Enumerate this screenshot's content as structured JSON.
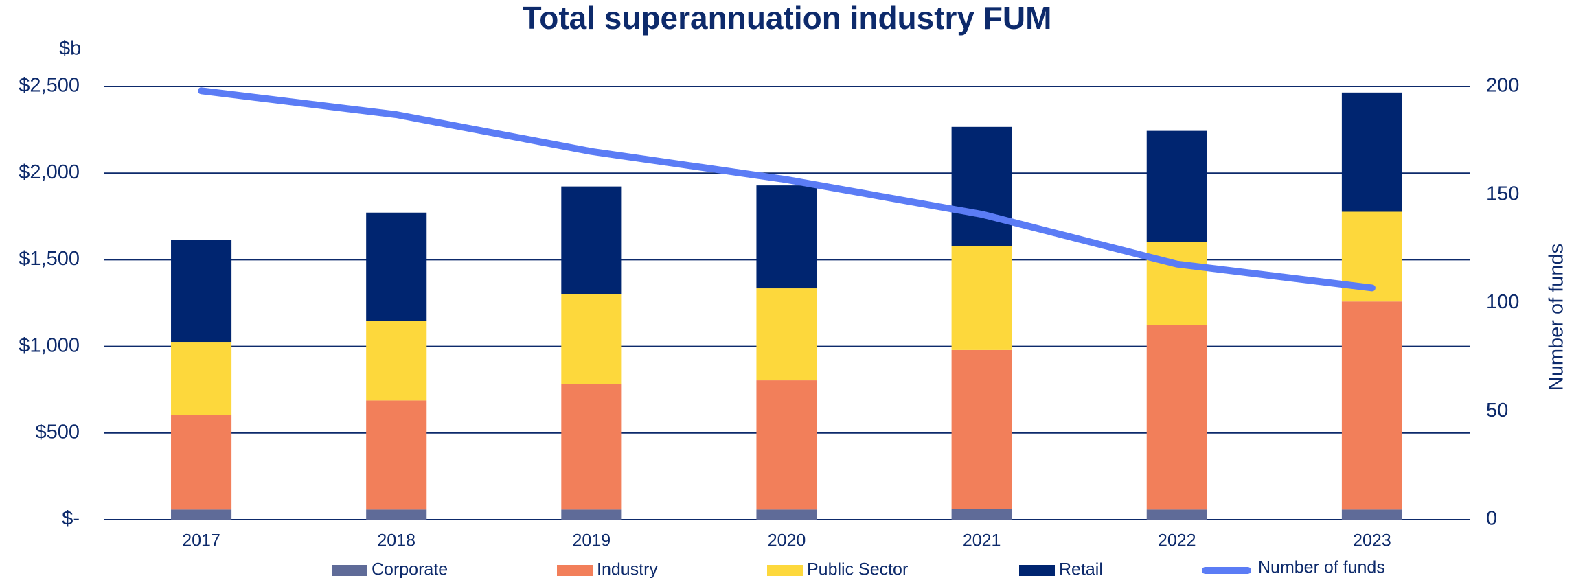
{
  "chart_data": {
    "type": "bar",
    "title": "Total superannuation industry FUM",
    "y_unit_label": "$b",
    "y2_label": "Number of funds",
    "categories": [
      "2017",
      "2018",
      "2019",
      "2020",
      "2021",
      "2022",
      "2023"
    ],
    "stacked": true,
    "series": [
      {
        "name": "Corporate",
        "color": "#5f6b98",
        "values": [
          58,
          58,
          58,
          58,
          60,
          58,
          58
        ]
      },
      {
        "name": "Industry",
        "color": "#f27f5a",
        "values": [
          548,
          630,
          723,
          746,
          919,
          1067,
          1201
        ]
      },
      {
        "name": "Public Sector",
        "color": "#fdd83c",
        "values": [
          420,
          460,
          519,
          531,
          600,
          478,
          518
        ]
      },
      {
        "name": "Retail",
        "color": "#002570",
        "values": [
          588,
          624,
          623,
          594,
          688,
          641,
          688
        ]
      },
      {
        "name": "Number of funds",
        "type": "line",
        "axis": "y2",
        "color": "#5b7cf5",
        "values": [
          198,
          187,
          170,
          157,
          141,
          118,
          107
        ]
      }
    ],
    "ylim": [
      0,
      2500
    ],
    "yticks": [
      {
        "value": 0,
        "label": "$-"
      },
      {
        "value": 500,
        "label": "$500"
      },
      {
        "value": 1000,
        "label": "$1,000"
      },
      {
        "value": 1500,
        "label": "$1,500"
      },
      {
        "value": 2000,
        "label": "$2,000"
      },
      {
        "value": 2500,
        "label": "$2,500"
      }
    ],
    "y2lim": [
      0,
      200
    ],
    "y2ticks": [
      0,
      50,
      100,
      150,
      200
    ],
    "grid": true,
    "legend": "bottom"
  }
}
